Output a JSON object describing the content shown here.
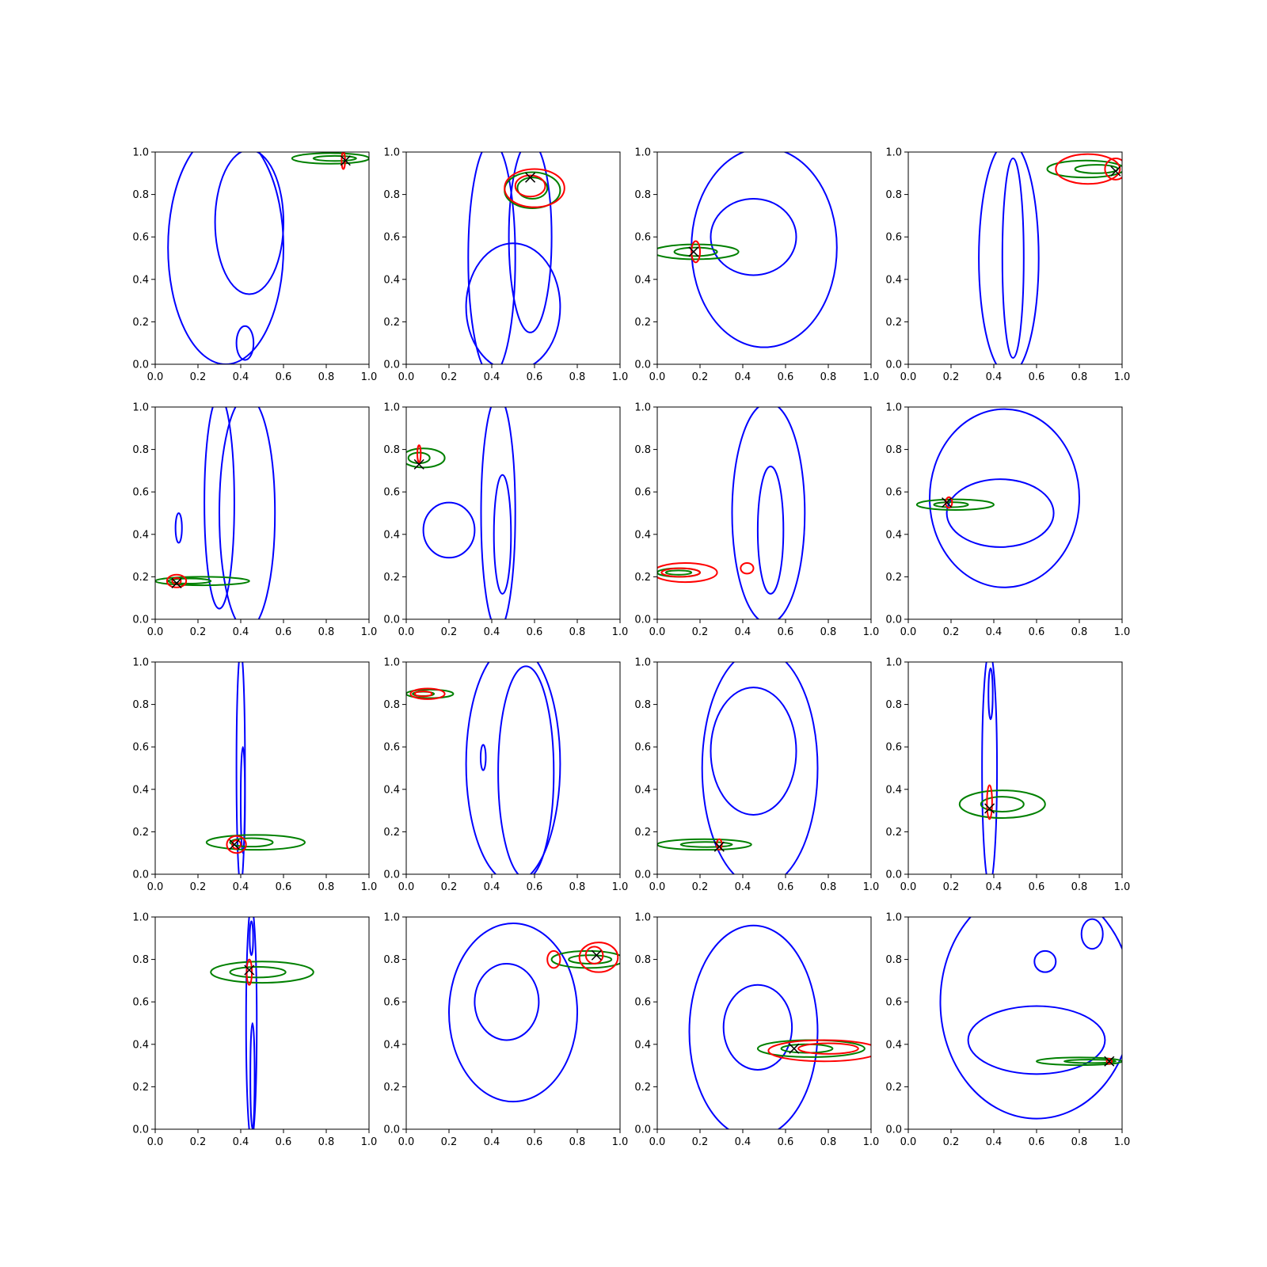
{
  "colors": {
    "background": "#ffffff",
    "axes": "#000000",
    "series_blue": "#0000ff",
    "series_green": "#008000",
    "series_red": "#ff0000",
    "marker": "#000000"
  },
  "chart_data": {
    "type": "contour",
    "layout": "4x4 grid of subplots",
    "shared_axes": {
      "xlim": [
        0.0,
        1.0
      ],
      "ylim": [
        0.0,
        1.0
      ],
      "xticks": [
        "0.0",
        "0.2",
        "0.4",
        "0.6",
        "0.8",
        "1.0"
      ],
      "yticks": [
        "0.0",
        "0.2",
        "0.4",
        "0.6",
        "0.8",
        "1.0"
      ],
      "grid": false
    },
    "panels": [
      {
        "blue": [
          {
            "cx": 0.33,
            "cy": 0.55,
            "rx": 0.27,
            "ry": 0.55
          },
          {
            "cx": 0.44,
            "cy": 0.67,
            "rx": 0.16,
            "ry": 0.34
          },
          {
            "cx": 0.42,
            "cy": 0.1,
            "rx": 0.04,
            "ry": 0.08
          }
        ],
        "green": [
          {
            "cx": 0.82,
            "cy": 0.97,
            "rx": 0.18,
            "ry": 0.025
          },
          {
            "cx": 0.84,
            "cy": 0.97,
            "rx": 0.1,
            "ry": 0.012
          }
        ],
        "red": [
          {
            "cx": 0.88,
            "cy": 0.96,
            "rx": 0.008,
            "ry": 0.04
          }
        ],
        "marker": [
          0.89,
          0.96
        ]
      },
      {
        "blue": [
          {
            "cx": 0.4,
            "cy": 0.5,
            "rx": 0.11,
            "ry": 0.55
          },
          {
            "cx": 0.58,
            "cy": 0.6,
            "rx": 0.1,
            "ry": 0.45
          },
          {
            "cx": 0.5,
            "cy": 0.27,
            "rx": 0.22,
            "ry": 0.3
          }
        ],
        "green": [
          {
            "cx": 0.59,
            "cy": 0.82,
            "rx": 0.13,
            "ry": 0.085
          },
          {
            "cx": 0.59,
            "cy": 0.83,
            "rx": 0.07,
            "ry": 0.05
          }
        ],
        "red": [
          {
            "cx": 0.6,
            "cy": 0.83,
            "rx": 0.14,
            "ry": 0.09
          },
          {
            "cx": 0.58,
            "cy": 0.84,
            "rx": 0.07,
            "ry": 0.05
          }
        ],
        "marker": [
          0.58,
          0.88
        ]
      },
      {
        "blue": [
          {
            "cx": 0.5,
            "cy": 0.55,
            "rx": 0.34,
            "ry": 0.47
          },
          {
            "cx": 0.45,
            "cy": 0.6,
            "rx": 0.2,
            "ry": 0.18
          }
        ],
        "green": [
          {
            "cx": 0.18,
            "cy": 0.53,
            "rx": 0.2,
            "ry": 0.035
          },
          {
            "cx": 0.18,
            "cy": 0.53,
            "rx": 0.1,
            "ry": 0.02
          }
        ],
        "red": [
          {
            "cx": 0.18,
            "cy": 0.53,
            "rx": 0.02,
            "ry": 0.05
          }
        ],
        "marker": [
          0.17,
          0.53
        ]
      },
      {
        "blue": [
          {
            "cx": 0.47,
            "cy": 0.5,
            "rx": 0.14,
            "ry": 0.55
          },
          {
            "cx": 0.49,
            "cy": 0.5,
            "rx": 0.05,
            "ry": 0.47
          }
        ],
        "green": [
          {
            "cx": 0.83,
            "cy": 0.92,
            "rx": 0.18,
            "ry": 0.04
          },
          {
            "cx": 0.88,
            "cy": 0.92,
            "rx": 0.1,
            "ry": 0.02
          }
        ],
        "red": [
          {
            "cx": 0.84,
            "cy": 0.92,
            "rx": 0.15,
            "ry": 0.07
          },
          {
            "cx": 0.97,
            "cy": 0.92,
            "rx": 0.05,
            "ry": 0.05
          }
        ],
        "marker": [
          0.97,
          0.91
        ]
      },
      {
        "blue": [
          {
            "cx": 0.3,
            "cy": 0.55,
            "rx": 0.07,
            "ry": 0.5
          },
          {
            "cx": 0.43,
            "cy": 0.5,
            "rx": 0.13,
            "ry": 0.55
          },
          {
            "cx": 0.11,
            "cy": 0.43,
            "rx": 0.015,
            "ry": 0.07
          }
        ],
        "green": [
          {
            "cx": 0.22,
            "cy": 0.18,
            "rx": 0.22,
            "ry": 0.02
          },
          {
            "cx": 0.16,
            "cy": 0.18,
            "rx": 0.1,
            "ry": 0.012
          }
        ],
        "red": [
          {
            "cx": 0.1,
            "cy": 0.18,
            "rx": 0.045,
            "ry": 0.03
          },
          {
            "cx": 0.1,
            "cy": 0.18,
            "rx": 0.02,
            "ry": 0.015
          }
        ],
        "marker": [
          0.1,
          0.17
        ]
      },
      {
        "blue": [
          {
            "cx": 0.45,
            "cy": 0.4,
            "rx": 0.04,
            "ry": 0.28
          },
          {
            "cx": 0.43,
            "cy": 0.5,
            "rx": 0.08,
            "ry": 0.55
          },
          {
            "cx": 0.2,
            "cy": 0.42,
            "rx": 0.12,
            "ry": 0.13
          }
        ],
        "green": [
          {
            "cx": 0.08,
            "cy": 0.76,
            "rx": 0.1,
            "ry": 0.045
          },
          {
            "cx": 0.06,
            "cy": 0.76,
            "rx": 0.05,
            "ry": 0.025
          }
        ],
        "red": [
          {
            "cx": 0.06,
            "cy": 0.78,
            "rx": 0.008,
            "ry": 0.04
          }
        ],
        "marker": [
          0.06,
          0.73
        ]
      },
      {
        "blue": [
          {
            "cx": 0.52,
            "cy": 0.5,
            "rx": 0.17,
            "ry": 0.52
          },
          {
            "cx": 0.53,
            "cy": 0.42,
            "rx": 0.06,
            "ry": 0.3
          }
        ],
        "green": [
          {
            "cx": 0.1,
            "cy": 0.22,
            "rx": 0.1,
            "ry": 0.02
          },
          {
            "cx": 0.1,
            "cy": 0.22,
            "rx": 0.06,
            "ry": 0.01
          }
        ],
        "red": [
          {
            "cx": 0.13,
            "cy": 0.22,
            "rx": 0.15,
            "ry": 0.045
          },
          {
            "cx": 0.11,
            "cy": 0.22,
            "rx": 0.09,
            "ry": 0.02
          },
          {
            "cx": 0.42,
            "cy": 0.24,
            "rx": 0.03,
            "ry": 0.025
          }
        ],
        "marker": [
          null,
          null
        ]
      },
      {
        "blue": [
          {
            "cx": 0.45,
            "cy": 0.57,
            "rx": 0.35,
            "ry": 0.42
          },
          {
            "cx": 0.43,
            "cy": 0.5,
            "rx": 0.25,
            "ry": 0.16
          }
        ],
        "green": [
          {
            "cx": 0.22,
            "cy": 0.54,
            "rx": 0.18,
            "ry": 0.025
          },
          {
            "cx": 0.2,
            "cy": 0.54,
            "rx": 0.08,
            "ry": 0.012
          }
        ],
        "red": [
          {
            "cx": 0.19,
            "cy": 0.55,
            "rx": 0.015,
            "ry": 0.025
          }
        ],
        "marker": [
          0.18,
          0.55
        ]
      },
      {
        "blue": [
          {
            "cx": 0.4,
            "cy": 0.5,
            "rx": 0.02,
            "ry": 0.55
          },
          {
            "cx": 0.41,
            "cy": 0.35,
            "rx": 0.01,
            "ry": 0.25
          }
        ],
        "green": [
          {
            "cx": 0.47,
            "cy": 0.15,
            "rx": 0.23,
            "ry": 0.035
          },
          {
            "cx": 0.45,
            "cy": 0.15,
            "rx": 0.1,
            "ry": 0.02
          }
        ],
        "red": [
          {
            "cx": 0.38,
            "cy": 0.14,
            "rx": 0.045,
            "ry": 0.04
          },
          {
            "cx": 0.38,
            "cy": 0.14,
            "rx": 0.02,
            "ry": 0.02
          }
        ],
        "marker": [
          0.37,
          0.14
        ]
      },
      {
        "blue": [
          {
            "cx": 0.5,
            "cy": 0.52,
            "rx": 0.22,
            "ry": 0.56
          },
          {
            "cx": 0.56,
            "cy": 0.48,
            "rx": 0.13,
            "ry": 0.5
          },
          {
            "cx": 0.36,
            "cy": 0.55,
            "rx": 0.012,
            "ry": 0.06
          }
        ],
        "green": [
          {
            "cx": 0.11,
            "cy": 0.85,
            "rx": 0.11,
            "ry": 0.02
          },
          {
            "cx": 0.08,
            "cy": 0.85,
            "rx": 0.05,
            "ry": 0.01
          }
        ],
        "red": [
          {
            "cx": 0.1,
            "cy": 0.85,
            "rx": 0.08,
            "ry": 0.025
          },
          {
            "cx": 0.08,
            "cy": 0.85,
            "rx": 0.04,
            "ry": 0.012
          }
        ],
        "marker": [
          null,
          null
        ]
      },
      {
        "blue": [
          {
            "cx": 0.48,
            "cy": 0.5,
            "rx": 0.27,
            "ry": 0.56
          },
          {
            "cx": 0.45,
            "cy": 0.58,
            "rx": 0.2,
            "ry": 0.3
          }
        ],
        "green": [
          {
            "cx": 0.22,
            "cy": 0.14,
            "rx": 0.22,
            "ry": 0.025
          },
          {
            "cx": 0.23,
            "cy": 0.14,
            "rx": 0.12,
            "ry": 0.012
          }
        ],
        "red": [
          {
            "cx": 0.29,
            "cy": 0.14,
            "rx": 0.012,
            "ry": 0.025
          }
        ],
        "marker": [
          0.29,
          0.13
        ]
      },
      {
        "blue": [
          {
            "cx": 0.38,
            "cy": 0.5,
            "rx": 0.035,
            "ry": 0.55
          },
          {
            "cx": 0.385,
            "cy": 0.85,
            "rx": 0.01,
            "ry": 0.12
          }
        ],
        "green": [
          {
            "cx": 0.44,
            "cy": 0.33,
            "rx": 0.2,
            "ry": 0.065
          },
          {
            "cx": 0.44,
            "cy": 0.33,
            "rx": 0.1,
            "ry": 0.035
          }
        ],
        "red": [
          {
            "cx": 0.38,
            "cy": 0.34,
            "rx": 0.012,
            "ry": 0.08
          }
        ],
        "marker": [
          0.38,
          0.31
        ]
      },
      {
        "blue": [
          {
            "cx": 0.45,
            "cy": 0.5,
            "rx": 0.025,
            "ry": 0.55
          },
          {
            "cx": 0.455,
            "cy": 0.25,
            "rx": 0.01,
            "ry": 0.25
          },
          {
            "cx": 0.45,
            "cy": 0.9,
            "rx": 0.008,
            "ry": 0.08
          }
        ],
        "green": [
          {
            "cx": 0.5,
            "cy": 0.74,
            "rx": 0.24,
            "ry": 0.05
          },
          {
            "cx": 0.48,
            "cy": 0.74,
            "rx": 0.13,
            "ry": 0.025
          }
        ],
        "red": [
          {
            "cx": 0.44,
            "cy": 0.74,
            "rx": 0.012,
            "ry": 0.06
          }
        ],
        "marker": [
          0.44,
          0.75
        ]
      },
      {
        "blue": [
          {
            "cx": 0.5,
            "cy": 0.55,
            "rx": 0.3,
            "ry": 0.42
          },
          {
            "cx": 0.47,
            "cy": 0.6,
            "rx": 0.15,
            "ry": 0.18
          }
        ],
        "green": [
          {
            "cx": 0.85,
            "cy": 0.8,
            "rx": 0.17,
            "ry": 0.04
          },
          {
            "cx": 0.86,
            "cy": 0.8,
            "rx": 0.1,
            "ry": 0.02
          }
        ],
        "red": [
          {
            "cx": 0.9,
            "cy": 0.81,
            "rx": 0.09,
            "ry": 0.07
          },
          {
            "cx": 0.88,
            "cy": 0.82,
            "rx": 0.04,
            "ry": 0.04
          },
          {
            "cx": 0.69,
            "cy": 0.8,
            "rx": 0.03,
            "ry": 0.04
          }
        ],
        "marker": [
          0.89,
          0.82
        ]
      },
      {
        "blue": [
          {
            "cx": 0.45,
            "cy": 0.46,
            "rx": 0.3,
            "ry": 0.5
          },
          {
            "cx": 0.47,
            "cy": 0.48,
            "rx": 0.16,
            "ry": 0.2
          }
        ],
        "green": [
          {
            "cx": 0.72,
            "cy": 0.38,
            "rx": 0.25,
            "ry": 0.04
          },
          {
            "cx": 0.7,
            "cy": 0.38,
            "rx": 0.12,
            "ry": 0.02
          }
        ],
        "red": [
          {
            "cx": 0.78,
            "cy": 0.37,
            "rx": 0.26,
            "ry": 0.05
          },
          {
            "cx": 0.8,
            "cy": 0.38,
            "rx": 0.14,
            "ry": 0.025
          }
        ],
        "marker": [
          0.64,
          0.38
        ]
      },
      {
        "blue": [
          {
            "cx": 0.6,
            "cy": 0.6,
            "rx": 0.45,
            "ry": 0.55
          },
          {
            "cx": 0.6,
            "cy": 0.42,
            "rx": 0.32,
            "ry": 0.16
          },
          {
            "cx": 0.86,
            "cy": 0.92,
            "rx": 0.05,
            "ry": 0.07
          },
          {
            "cx": 0.64,
            "cy": 0.79,
            "rx": 0.05,
            "ry": 0.05
          }
        ],
        "green": [
          {
            "cx": 0.8,
            "cy": 0.32,
            "rx": 0.2,
            "ry": 0.018
          },
          {
            "cx": 0.85,
            "cy": 0.32,
            "rx": 0.12,
            "ry": 0.008
          }
        ],
        "red": [
          {
            "cx": 0.94,
            "cy": 0.32,
            "rx": 0.012,
            "ry": 0.012
          }
        ],
        "marker": [
          0.94,
          0.32
        ]
      }
    ]
  }
}
